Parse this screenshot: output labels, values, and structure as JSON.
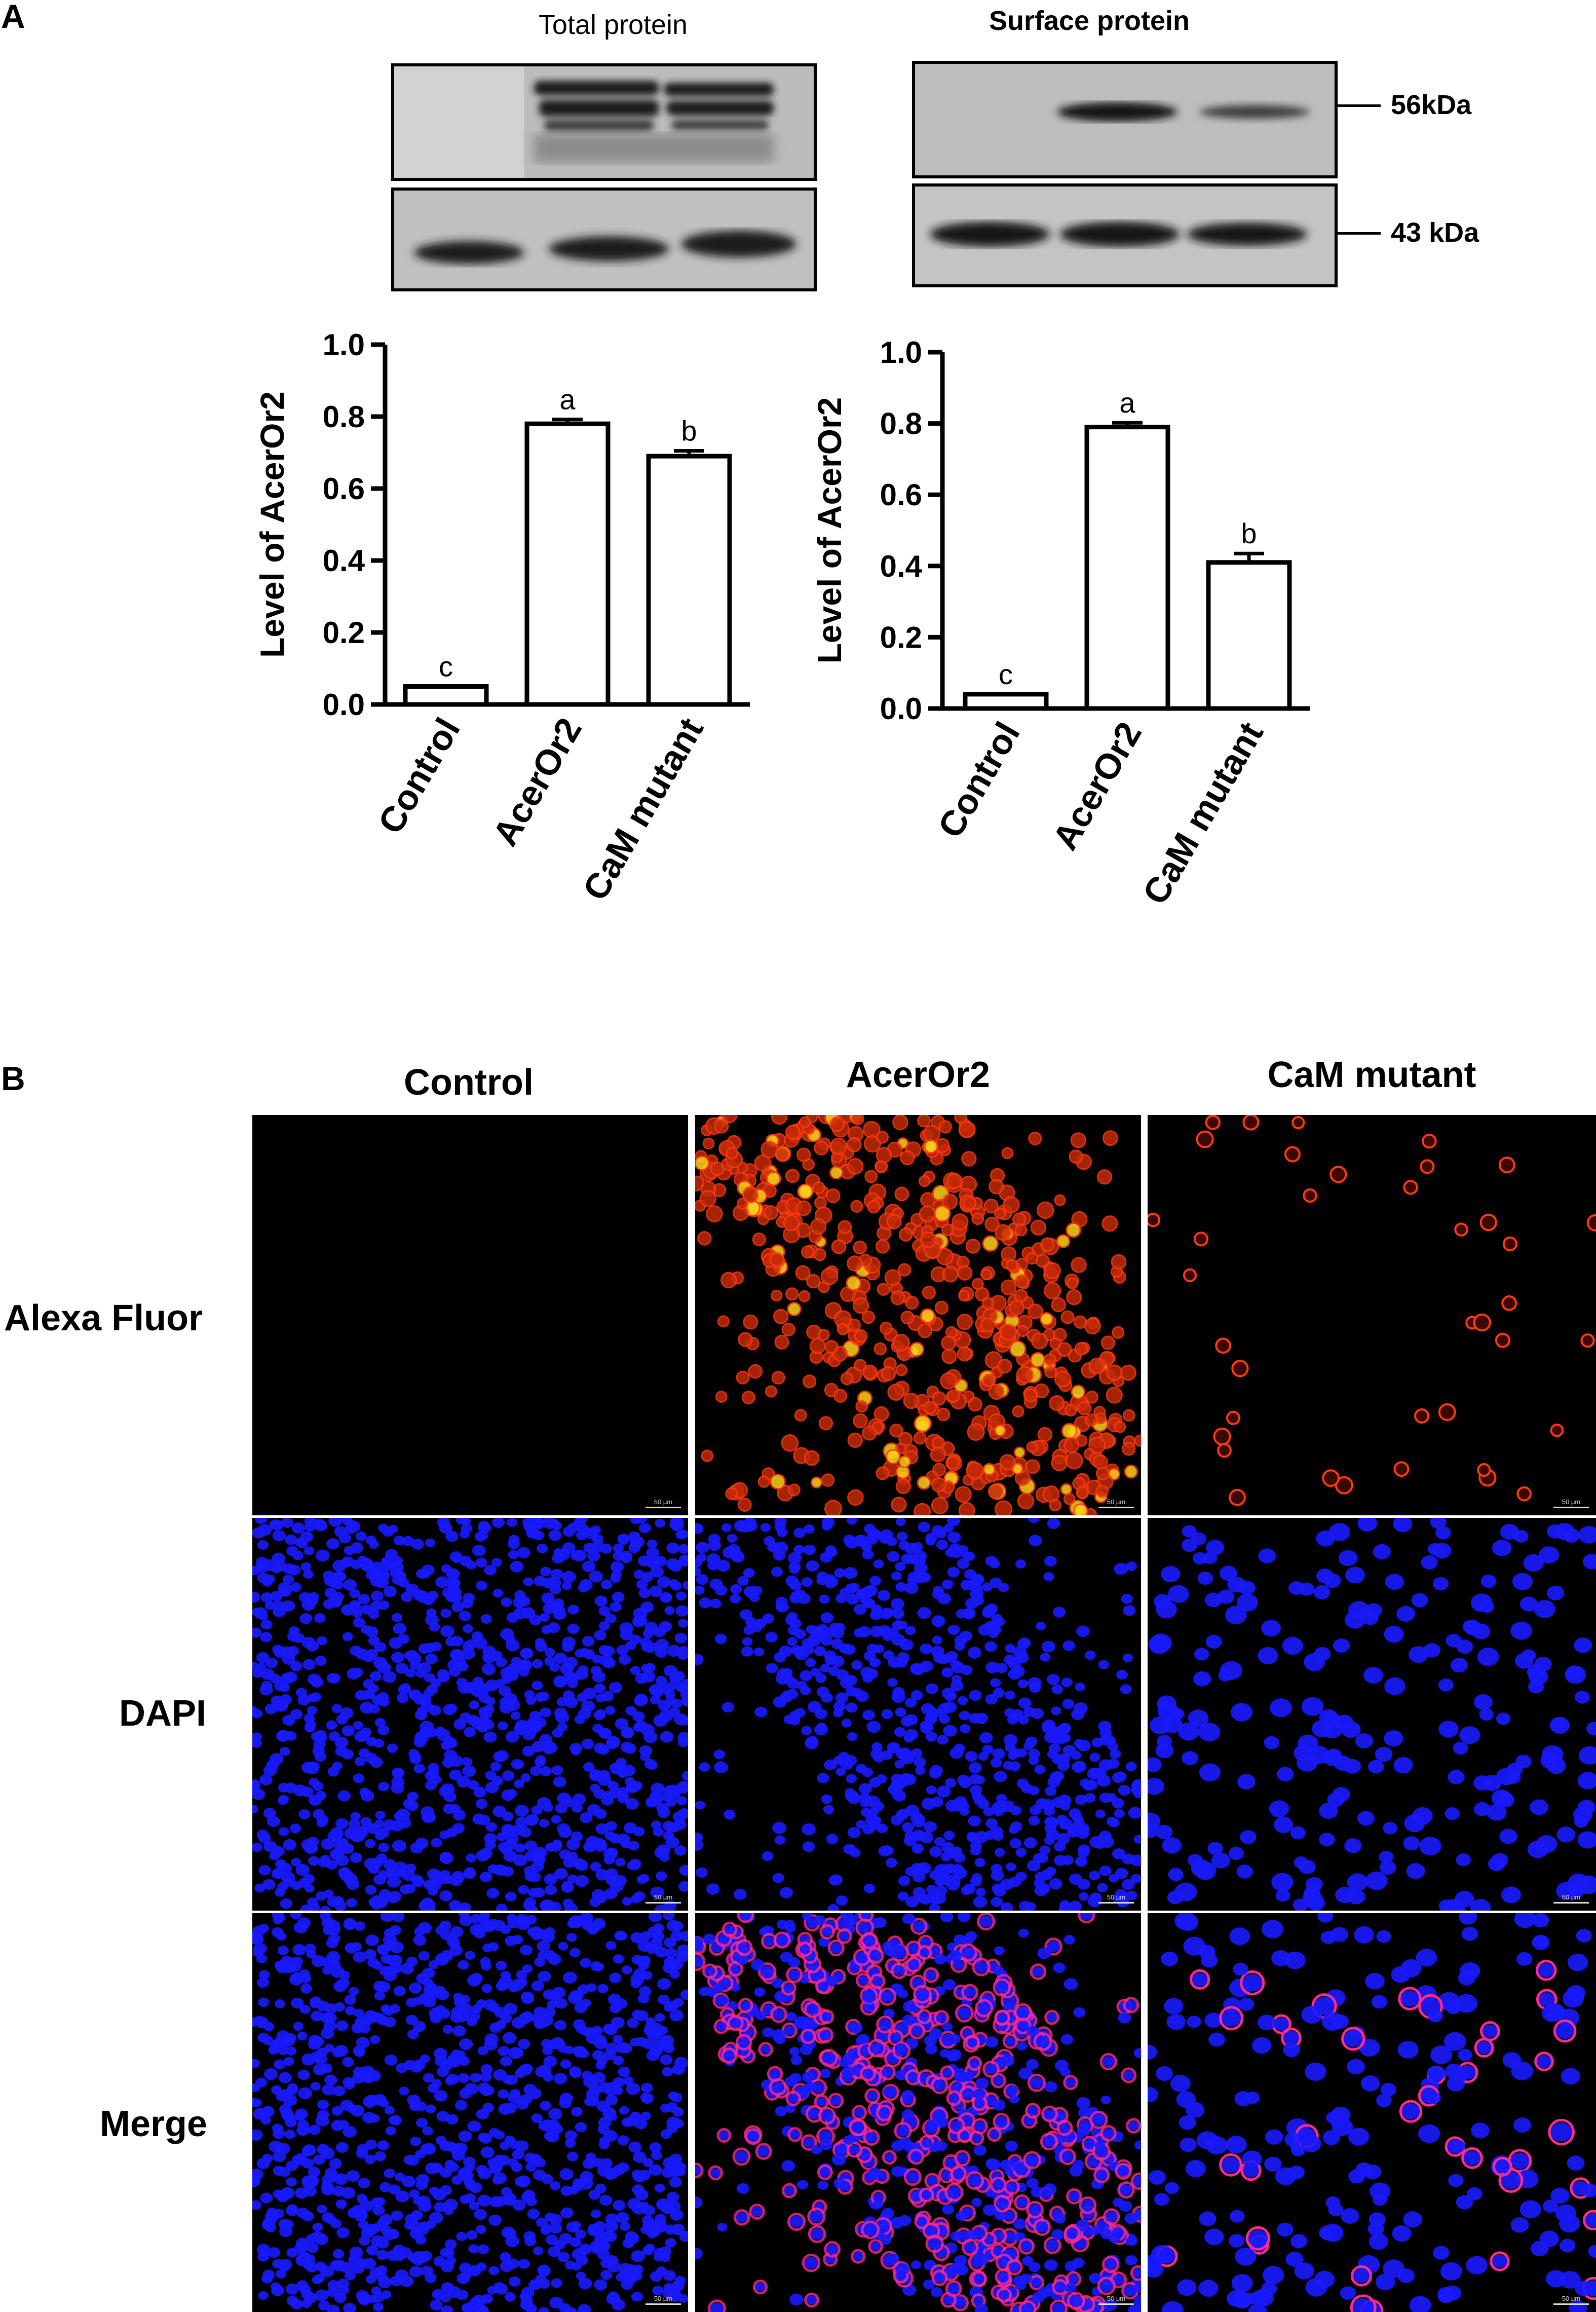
{
  "panel_a": {
    "letter": "A",
    "blots": {
      "total_title": "Total protein",
      "surface_title": "Surface protein",
      "marker_top": "56kDa",
      "marker_bottom": "43 kDa"
    }
  },
  "panel_b": {
    "letter": "B",
    "columns": [
      "Control",
      "AcerOr2",
      "CaM mutant"
    ],
    "rows": [
      "Alexa Fluor",
      "DAPI",
      "Merge"
    ],
    "scale_bar": "50 μm"
  },
  "chart_data": [
    {
      "type": "bar",
      "categories": [
        "Control",
        "AcerOr2",
        "CaM mutant"
      ],
      "values": [
        0.05,
        0.78,
        0.69
      ],
      "errors": [
        0.0,
        0.012,
        0.015
      ],
      "significance": [
        "c",
        "a",
        "b"
      ],
      "title": "",
      "xlabel": "",
      "ylabel": "Level of AcerOr2",
      "ylim": [
        0,
        1.0
      ],
      "yticks": [
        "0.0",
        "0.2",
        "0.4",
        "0.6",
        "0.8",
        "1.0"
      ]
    },
    {
      "type": "bar",
      "categories": [
        "Control",
        "AcerOr2",
        "CaM mutant"
      ],
      "values": [
        0.04,
        0.79,
        0.41
      ],
      "errors": [
        0.0,
        0.012,
        0.025
      ],
      "significance": [
        "c",
        "a",
        "b"
      ],
      "title": "",
      "xlabel": "",
      "ylabel": "Level of AcerOr2",
      "ylim": [
        0,
        1.0
      ],
      "yticks": [
        "0.0",
        "0.2",
        "0.4",
        "0.6",
        "0.8",
        "1.0"
      ]
    }
  ],
  "colors": {
    "bar_fill": "#ffffff",
    "bar_stroke": "#000000",
    "dapi": "#1a1aff",
    "alexa": "#ff3a10",
    "alexa_highlight": "#ffd21a",
    "merge": "#ff2a8a"
  }
}
